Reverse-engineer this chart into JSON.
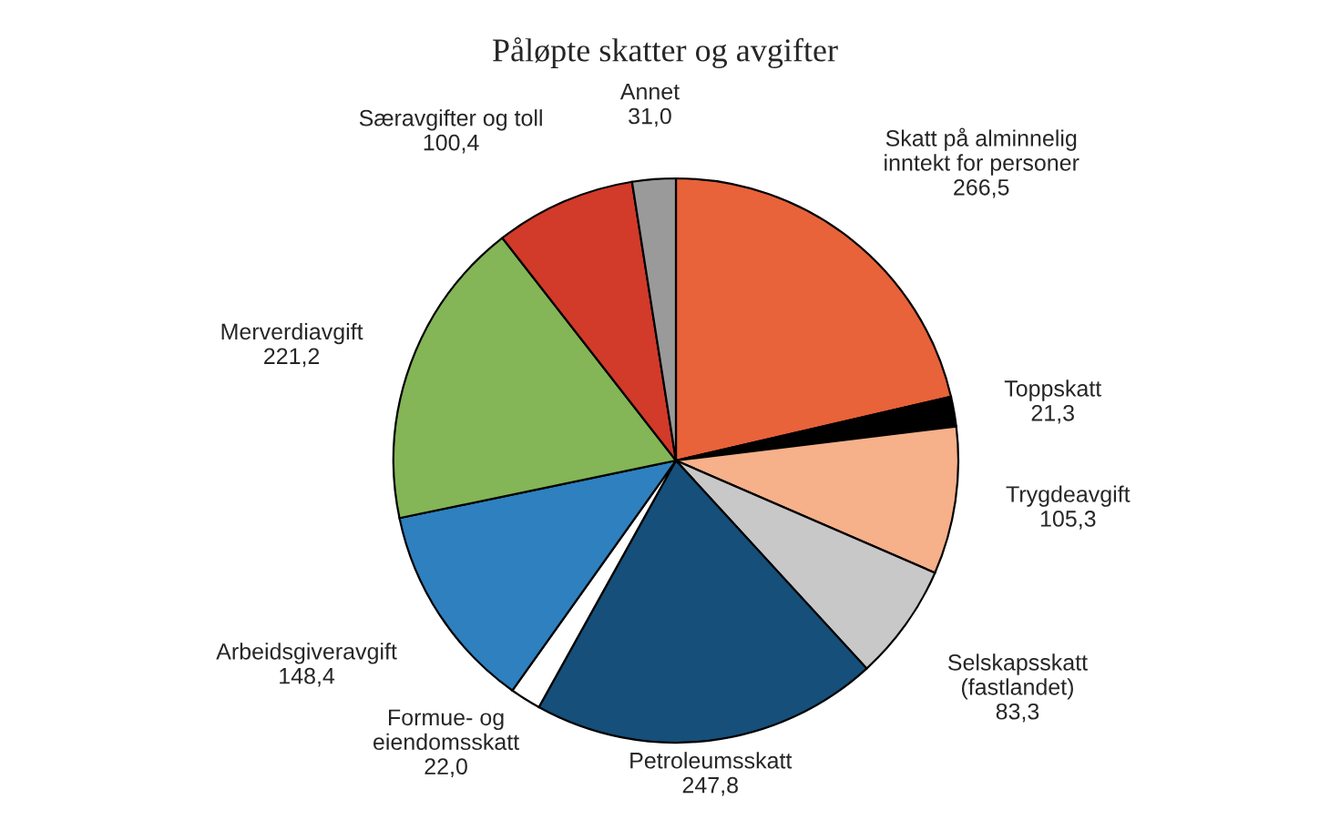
{
  "chart_data": {
    "type": "pie",
    "title": "Påløpte skatter og avgifter",
    "categories": [
      "Skatt på alminnelig\ninntekt for personer",
      "Toppskatt",
      "Trygdeavgift",
      "Selskapsskatt\n(fastlandet)",
      "Petroleumsskatt",
      "Formue- og\neiendomsskatt",
      "Arbeidsgiveravgift",
      "Merverdiavgift",
      "Særavgifter og toll",
      "Annet"
    ],
    "values": [
      266.5,
      21.3,
      105.3,
      83.3,
      247.8,
      22.0,
      148.4,
      221.2,
      100.4,
      31.0
    ],
    "value_labels": [
      "266,5",
      "21,3",
      "105,3",
      "83,3",
      "247,8",
      "22,0",
      "148,4",
      "221,2",
      "100,4",
      "31,0"
    ],
    "colors": [
      "#e8623a",
      "#000000",
      "#f6b08a",
      "#c8c8c8",
      "#154f7a",
      "#ffffff",
      "#2f80bf",
      "#84b556",
      "#d23a2a",
      "#9a9a9a"
    ]
  }
}
